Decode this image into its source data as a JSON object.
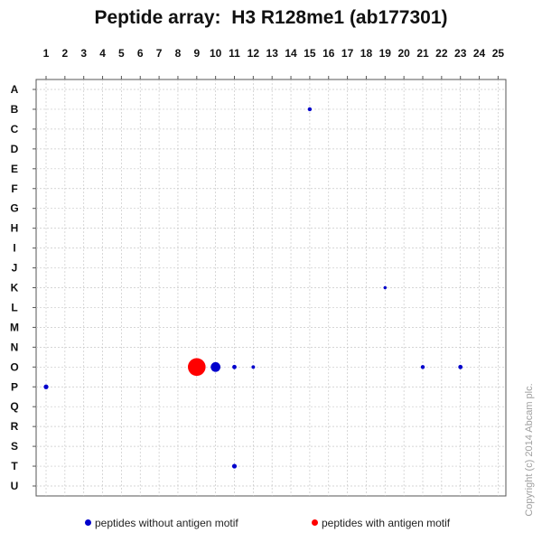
{
  "chart_data": {
    "type": "scatter",
    "title": "Peptide array:  H3 R128me1 (ab177301)",
    "xlabel": "",
    "ylabel": "",
    "x_categories": [
      "1",
      "2",
      "3",
      "4",
      "5",
      "6",
      "7",
      "8",
      "9",
      "10",
      "11",
      "12",
      "13",
      "14",
      "15",
      "16",
      "17",
      "18",
      "19",
      "20",
      "21",
      "22",
      "23",
      "24",
      "25"
    ],
    "y_categories": [
      "A",
      "B",
      "C",
      "D",
      "E",
      "F",
      "G",
      "H",
      "I",
      "J",
      "K",
      "L",
      "M",
      "N",
      "O",
      "P",
      "Q",
      "R",
      "S",
      "T",
      "U"
    ],
    "grid": true,
    "legend_placement": "bottom",
    "series": [
      {
        "name": "peptides without antigen motif",
        "color": "#0000cc",
        "points": [
          {
            "col": 15,
            "row": "B",
            "value": 0.5
          },
          {
            "col": 19,
            "row": "K",
            "value": 0.3
          },
          {
            "col": 10,
            "row": "O",
            "value": 3
          },
          {
            "col": 11,
            "row": "O",
            "value": 0.6
          },
          {
            "col": 12,
            "row": "O",
            "value": 0.4
          },
          {
            "col": 21,
            "row": "O",
            "value": 0.5
          },
          {
            "col": 23,
            "row": "O",
            "value": 0.6
          },
          {
            "col": 1,
            "row": "P",
            "value": 0.7
          },
          {
            "col": 11,
            "row": "T",
            "value": 0.7
          }
        ]
      },
      {
        "name": "peptides with antigen motif",
        "color": "#ff0000",
        "points": [
          {
            "col": 9,
            "row": "O",
            "value": 10
          }
        ]
      }
    ]
  },
  "copyright": "Copyright (c) 2014 Abcam plc."
}
